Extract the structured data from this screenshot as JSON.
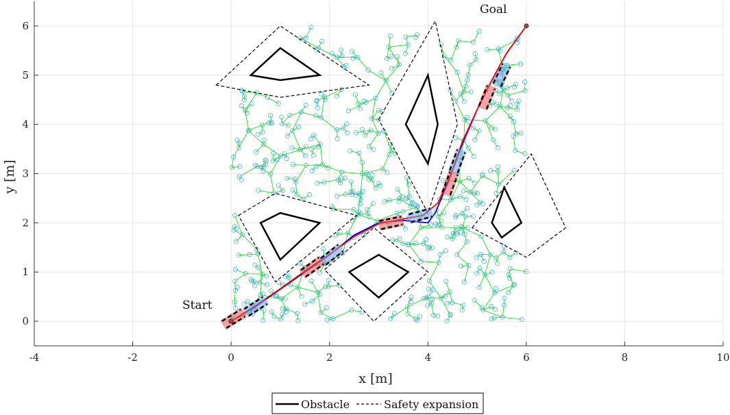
{
  "chart_data": {
    "type": "scatter",
    "xlabel": "x [m]",
    "ylabel": "y [m]",
    "xlim": [
      -4,
      10
    ],
    "ylim": [
      -0.5,
      6.5
    ],
    "xticks": [
      -4,
      -2,
      0,
      2,
      4,
      6,
      8,
      10
    ],
    "yticks": [
      0,
      1,
      2,
      3,
      4,
      5,
      6
    ],
    "grid": true,
    "legend_placement": "bottom-center",
    "legend": [
      {
        "label": "Obstacle",
        "style": "solid"
      },
      {
        "label": "Safety expansion",
        "style": "dashed"
      }
    ],
    "annotations": [
      {
        "text": "Start",
        "x": -0.6,
        "y": 0.35
      },
      {
        "text": "Goal",
        "x": 5.4,
        "y": 6.3
      }
    ],
    "start": [
      0,
      0
    ],
    "goal": [
      6,
      6
    ],
    "obstacles": [
      [
        [
          0.4,
          5.0
        ],
        [
          1.0,
          5.55
        ],
        [
          1.8,
          5.0
        ],
        [
          1.0,
          4.9
        ]
      ],
      [
        [
          3.55,
          4.0
        ],
        [
          4.0,
          5.0
        ],
        [
          4.2,
          4.0
        ],
        [
          4.0,
          3.2
        ]
      ],
      [
        [
          0.6,
          2.0
        ],
        [
          1.0,
          2.2
        ],
        [
          1.8,
          2.0
        ],
        [
          1.0,
          1.25
        ]
      ],
      [
        [
          2.4,
          1.0
        ],
        [
          3.0,
          1.35
        ],
        [
          3.6,
          1.0
        ],
        [
          3.0,
          0.48
        ]
      ],
      [
        [
          5.3,
          2.0
        ],
        [
          5.55,
          2.72
        ],
        [
          5.9,
          2.0
        ],
        [
          5.5,
          1.7
        ]
      ]
    ],
    "safety_expansions": [
      [
        [
          -0.3,
          4.8
        ],
        [
          1.0,
          6.0
        ],
        [
          2.8,
          4.8
        ],
        [
          1.0,
          4.55
        ]
      ],
      [
        [
          3.0,
          4.1
        ],
        [
          4.15,
          6.1
        ],
        [
          4.6,
          4.0
        ],
        [
          4.0,
          2.2
        ]
      ],
      [
        [
          0.15,
          2.15
        ],
        [
          0.9,
          2.6
        ],
        [
          2.55,
          2.15
        ],
        [
          0.9,
          0.8
        ]
      ],
      [
        [
          1.9,
          1.05
        ],
        [
          2.9,
          1.9
        ],
        [
          4.0,
          1.0
        ],
        [
          2.9,
          0.0
        ]
      ],
      [
        [
          4.9,
          1.9
        ],
        [
          6.1,
          3.4
        ],
        [
          6.8,
          1.9
        ],
        [
          6.0,
          1.3
        ]
      ]
    ],
    "series": [
      {
        "role": "planned-path",
        "color": "#0000ff",
        "x": [
          0,
          0.5,
          1.0,
          1.5,
          2.0,
          2.5,
          3.0,
          3.5,
          4.0,
          4.15,
          4.4,
          4.7,
          5.0,
          5.3,
          5.6,
          6.0
        ],
        "y": [
          0,
          0.3,
          0.65,
          1.0,
          1.35,
          1.75,
          2.0,
          2.05,
          2.0,
          2.2,
          2.8,
          3.6,
          4.3,
          4.9,
          5.45,
          6.0
        ]
      },
      {
        "role": "smoothed-trajectory",
        "color": "#ff0000",
        "x": [
          0,
          0.5,
          1.0,
          1.5,
          2.0,
          2.5,
          3.0,
          3.5,
          3.9,
          4.2,
          4.45,
          4.7,
          5.0,
          5.3,
          5.6,
          6.0
        ],
        "y": [
          0,
          0.32,
          0.66,
          1.02,
          1.36,
          1.72,
          1.98,
          2.08,
          2.15,
          2.4,
          2.95,
          3.65,
          4.3,
          4.9,
          5.45,
          6.0
        ]
      }
    ],
    "vehicle_poses": [
      {
        "x": 0.05,
        "y": 0.05,
        "theta_deg": 32
      },
      {
        "x": 0.5,
        "y": 0.3,
        "theta_deg": 33
      },
      {
        "x": 1.65,
        "y": 1.1,
        "theta_deg": 35
      },
      {
        "x": 2.05,
        "y": 1.35,
        "theta_deg": 38
      },
      {
        "x": 3.25,
        "y": 2.0,
        "theta_deg": 12
      },
      {
        "x": 3.85,
        "y": 2.15,
        "theta_deg": 15
      },
      {
        "x": 4.45,
        "y": 2.8,
        "theta_deg": 70
      },
      {
        "x": 4.6,
        "y": 3.25,
        "theta_deg": 70
      },
      {
        "x": 5.2,
        "y": 4.55,
        "theta_deg": 68
      },
      {
        "x": 5.5,
        "y": 5.0,
        "theta_deg": 65
      }
    ],
    "tree": {
      "edge_color": "#00dd00",
      "node_color": "#33aadd",
      "bounds": [
        0,
        0,
        6,
        6
      ]
    }
  }
}
